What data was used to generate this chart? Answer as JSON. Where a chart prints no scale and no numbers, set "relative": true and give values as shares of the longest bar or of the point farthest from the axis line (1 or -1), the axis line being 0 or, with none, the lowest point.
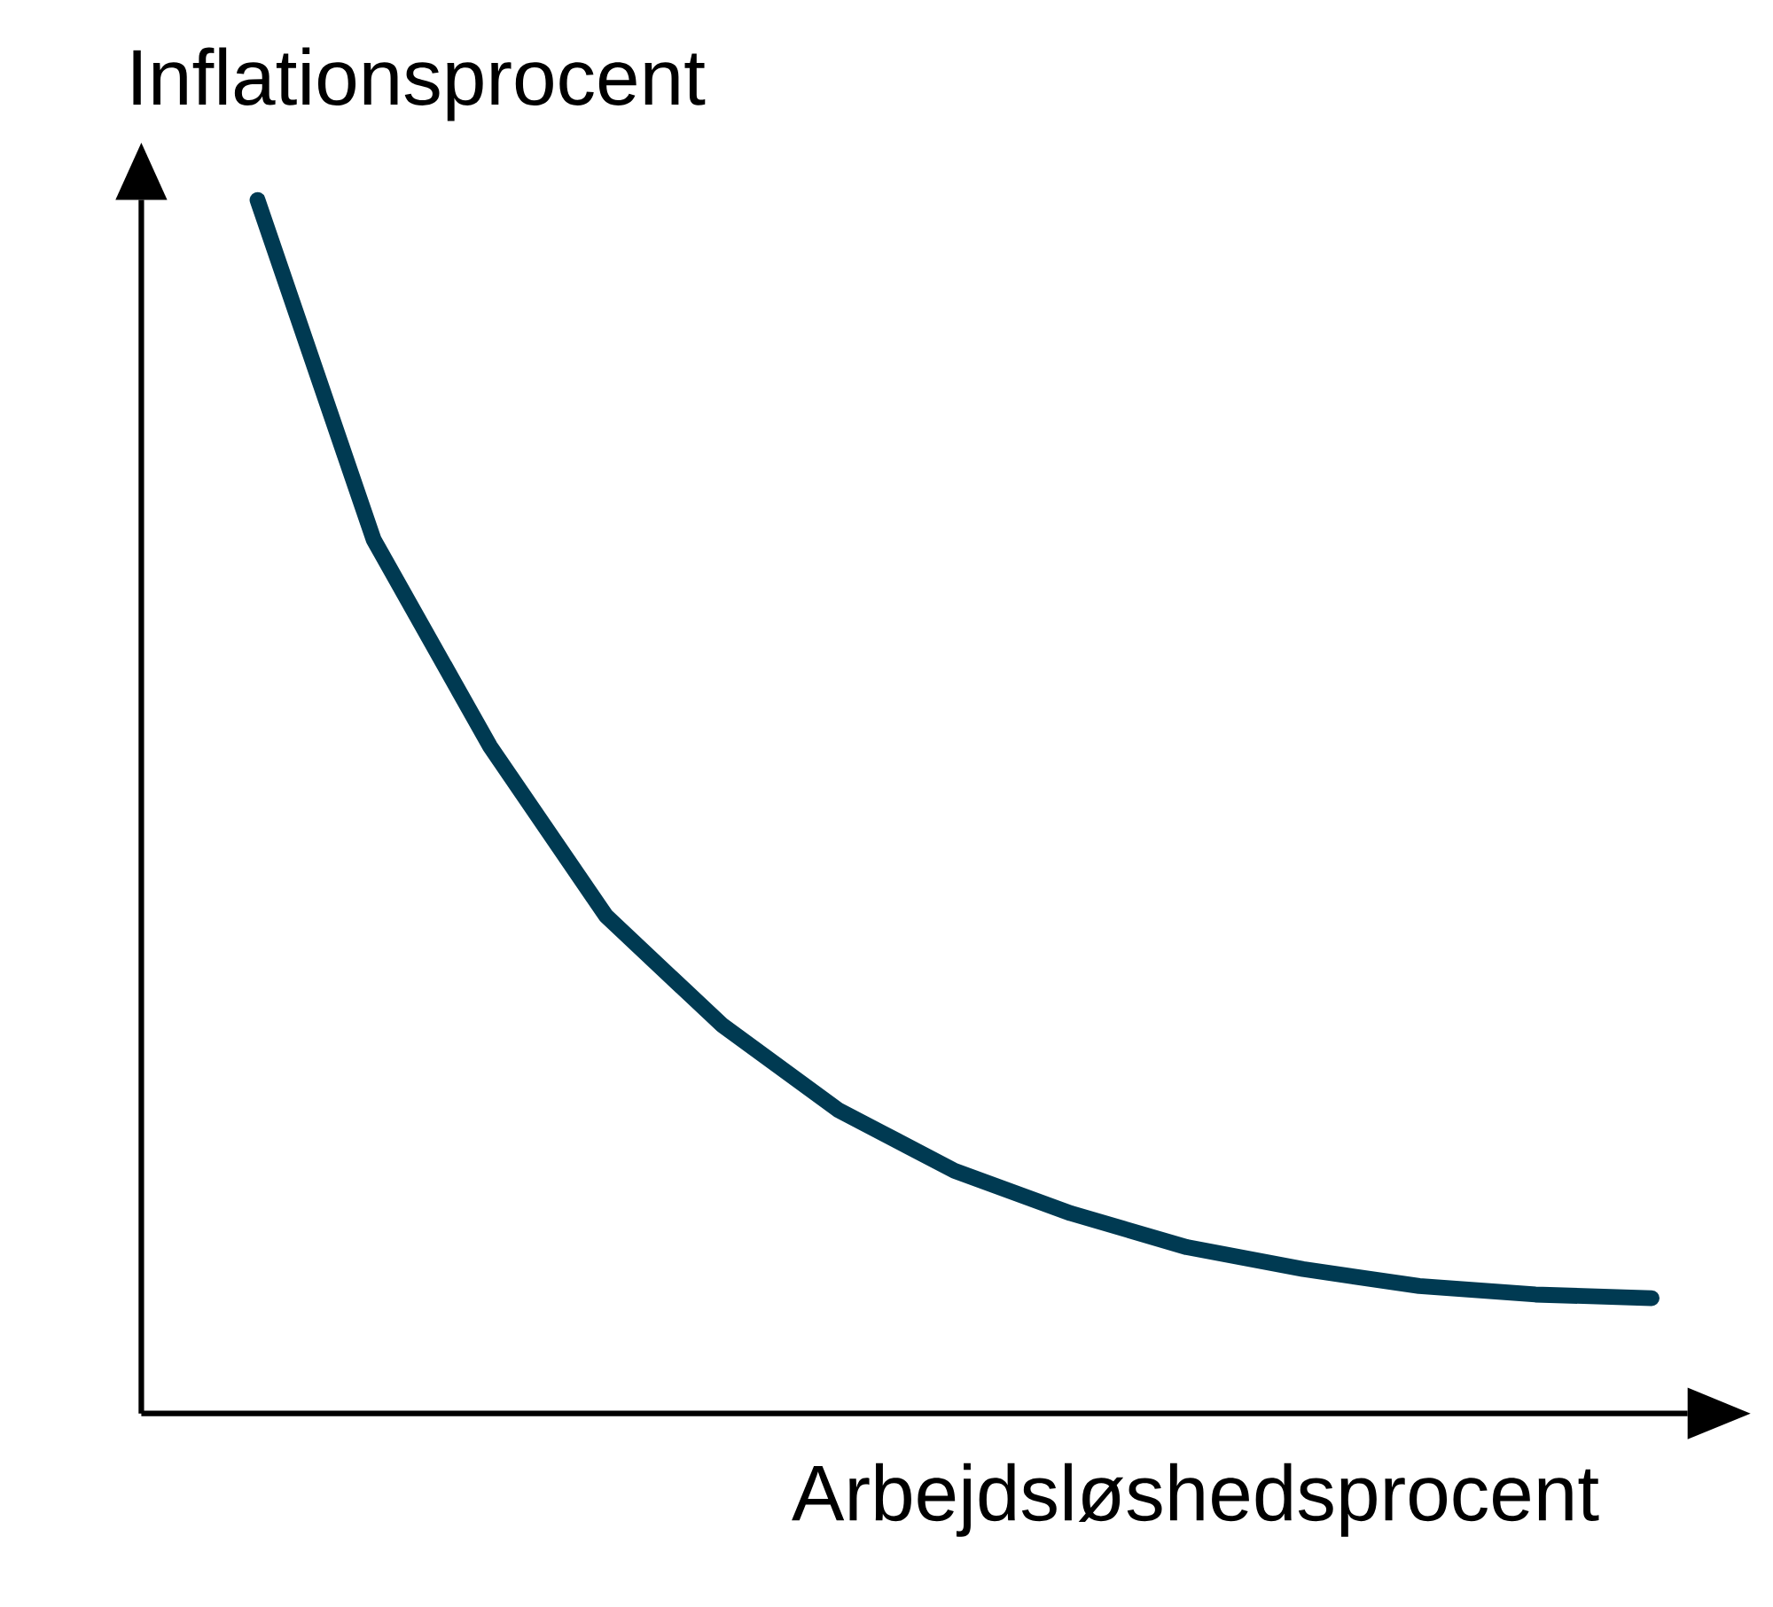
{
  "chart_data": {
    "type": "line",
    "xlabel": "Arbejdsløshedsprocent",
    "ylabel": "Inflationsprocent",
    "categories": [
      null,
      null,
      null,
      null,
      null,
      null,
      null,
      null,
      null,
      null,
      null,
      null,
      null
    ],
    "relative": true,
    "series": [
      {
        "color": "#003a52",
        "values": [
          1.0,
          0.72,
          0.55,
          0.41,
          0.32,
          0.25,
          0.2,
          0.165,
          0.137,
          0.119,
          0.105,
          0.098,
          0.095
        ]
      }
    ]
  }
}
